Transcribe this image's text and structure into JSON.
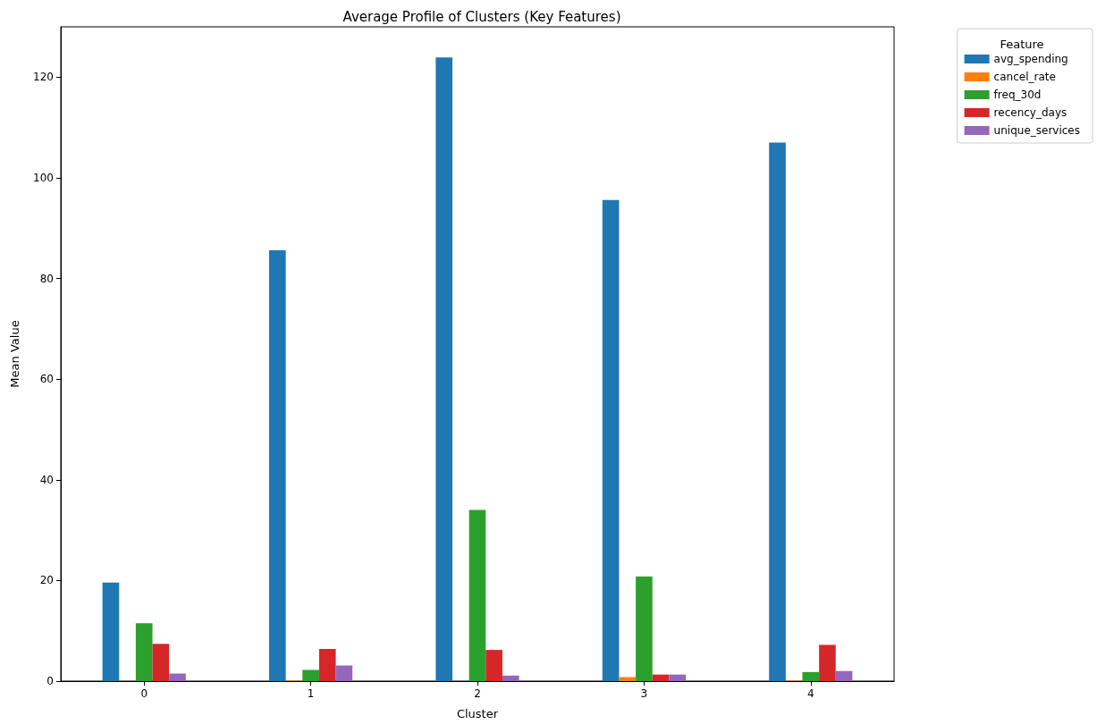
{
  "chart_data": {
    "type": "bar",
    "title": "Average Profile of Clusters (Key Features)",
    "xlabel": "Cluster",
    "ylabel": "Mean Value",
    "legend_title": "Feature",
    "categories": [
      "0",
      "1",
      "2",
      "3",
      "4"
    ],
    "series": [
      {
        "name": "avg_spending",
        "color": "#1f77b4",
        "values": [
          19.6,
          85.6,
          123.9,
          95.6,
          107
        ]
      },
      {
        "name": "cancel_rate",
        "color": "#ff7f0e",
        "values": [
          0,
          0.1,
          0,
          0.8,
          0.1
        ]
      },
      {
        "name": "freq_30d",
        "color": "#2ca02c",
        "values": [
          11.5,
          2.2,
          34,
          20.8,
          1.8
        ]
      },
      {
        "name": "recency_days",
        "color": "#d62728",
        "values": [
          7.4,
          6.4,
          6.2,
          1.3,
          7.2
        ]
      },
      {
        "name": "unique_services",
        "color": "#9467bd",
        "values": [
          1.5,
          3.1,
          1.1,
          1.3,
          2
        ]
      }
    ],
    "ylim": [
      0,
      130
    ],
    "yticks": [
      0,
      20,
      40,
      60,
      80,
      100,
      120
    ],
    "grid": false,
    "legend": "top right"
  }
}
